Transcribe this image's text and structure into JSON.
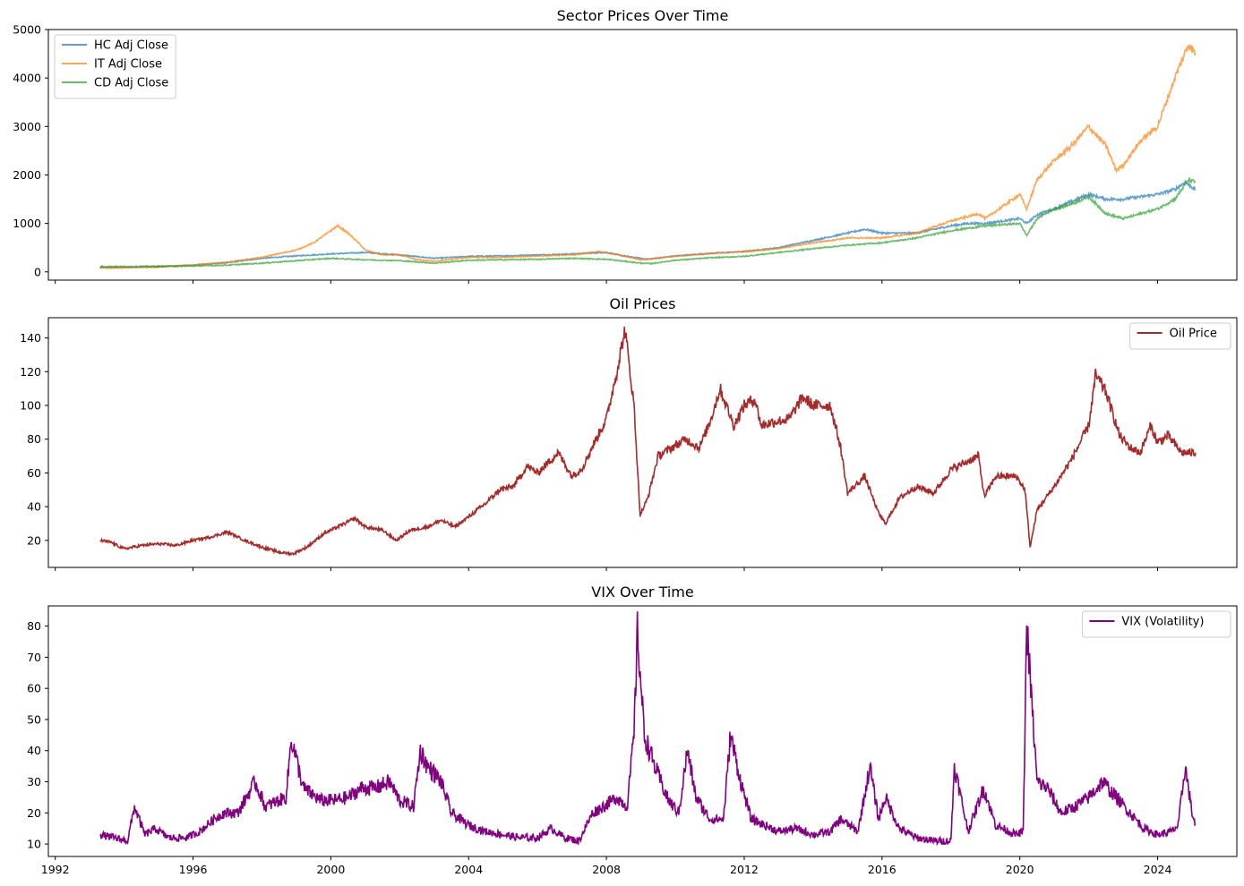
{
  "chart_data": [
    {
      "type": "line",
      "title": "Sector Prices Over Time",
      "xlabel": "",
      "ylabel": "",
      "xlim": [
        1991.8,
        2026.3
      ],
      "ylim": [
        -170,
        5000
      ],
      "xticks": [
        "1992",
        "1996",
        "2000",
        "2004",
        "2008",
        "2012",
        "2016",
        "2020",
        "2024"
      ],
      "yticks": [
        "0",
        "1000",
        "2000",
        "3000",
        "4000",
        "5000"
      ],
      "show_xtick_labels": false,
      "legend": "top-left",
      "grid": false,
      "series": [
        {
          "name": "HC Adj Close",
          "color": "#1f77b4",
          "x": [
            1993.3,
            1994.0,
            1995.0,
            1996.0,
            1997.0,
            1998.0,
            1999.0,
            2000.0,
            2001.0,
            2002.0,
            2003.0,
            2004.0,
            2005.0,
            2006.0,
            2007.0,
            2008.0,
            2008.5,
            2009.2,
            2010.0,
            2011.0,
            2012.0,
            2013.0,
            2014.0,
            2015.0,
            2015.5,
            2016.0,
            2017.0,
            2018.0,
            2018.5,
            2019.0,
            2020.0,
            2020.2,
            2020.5,
            2021.0,
            2022.0,
            2022.5,
            2023.0,
            2024.0,
            2024.5,
            2024.8,
            2025.1
          ],
          "y": [
            95,
            95,
            110,
            140,
            190,
            280,
            330,
            370,
            400,
            350,
            280,
            320,
            330,
            350,
            370,
            400,
            330,
            260,
            330,
            380,
            420,
            500,
            650,
            800,
            880,
            800,
            800,
            950,
            1000,
            1000,
            1100,
            1000,
            1180,
            1300,
            1600,
            1500,
            1500,
            1600,
            1700,
            1850,
            1700
          ]
        },
        {
          "name": "IT Adj Close",
          "color": "#ff7f0e",
          "x": [
            1993.3,
            1994.0,
            1995.0,
            1996.0,
            1997.0,
            1998.0,
            1999.0,
            1999.5,
            2000.0,
            2000.2,
            2000.5,
            2000.8,
            2001.0,
            2001.5,
            2002.0,
            2002.5,
            2003.0,
            2004.0,
            2005.0,
            2006.0,
            2007.0,
            2007.8,
            2008.5,
            2009.0,
            2010.0,
            2011.0,
            2012.0,
            2013.0,
            2014.0,
            2015.0,
            2016.0,
            2017.0,
            2018.0,
            2018.8,
            2019.0,
            2020.0,
            2020.2,
            2020.5,
            2021.0,
            2021.5,
            2022.0,
            2022.5,
            2022.8,
            2023.0,
            2023.5,
            2024.0,
            2024.5,
            2024.9,
            2025.1
          ],
          "y": [
            80,
            85,
            100,
            140,
            200,
            300,
            450,
            600,
            850,
            950,
            800,
            600,
            450,
            350,
            350,
            250,
            220,
            300,
            300,
            330,
            350,
            420,
            330,
            250,
            320,
            380,
            420,
            480,
            600,
            700,
            700,
            800,
            1050,
            1200,
            1100,
            1600,
            1300,
            1900,
            2300,
            2600,
            3000,
            2600,
            2100,
            2200,
            2700,
            3000,
            4000,
            4700,
            4500
          ]
        },
        {
          "name": "CD Adj Close",
          "color": "#2ca02c",
          "x": [
            1993.3,
            1994.0,
            1995.0,
            1996.0,
            1997.0,
            1998.0,
            1999.0,
            2000.0,
            2001.0,
            2002.0,
            2003.0,
            2004.0,
            2005.0,
            2006.0,
            2007.0,
            2008.0,
            2009.0,
            2009.3,
            2010.0,
            2011.0,
            2012.0,
            2013.0,
            2014.0,
            2015.0,
            2016.0,
            2017.0,
            2018.0,
            2019.0,
            2020.0,
            2020.2,
            2020.5,
            2021.0,
            2021.5,
            2022.0,
            2022.5,
            2023.0,
            2024.0,
            2024.5,
            2024.9,
            2025.1
          ],
          "y": [
            110,
            110,
            115,
            120,
            140,
            180,
            230,
            280,
            250,
            230,
            180,
            240,
            250,
            260,
            280,
            260,
            180,
            170,
            240,
            290,
            320,
            400,
            480,
            550,
            600,
            700,
            850,
            950,
            1000,
            750,
            1100,
            1300,
            1400,
            1550,
            1200,
            1100,
            1300,
            1500,
            1900,
            1850
          ]
        }
      ]
    },
    {
      "type": "line",
      "title": "Oil Prices",
      "xlabel": "",
      "ylabel": "",
      "xlim": [
        1991.8,
        2026.3
      ],
      "ylim": [
        4,
        152
      ],
      "xticks": [
        "1992",
        "1996",
        "2000",
        "2004",
        "2008",
        "2012",
        "2016",
        "2020",
        "2024"
      ],
      "yticks": [
        "20",
        "40",
        "60",
        "80",
        "100",
        "120",
        "140"
      ],
      "show_xtick_labels": false,
      "legend": "top-right",
      "grid": false,
      "series": [
        {
          "name": "Oil Price",
          "color": "#a52a2a",
          "x": [
            1993.3,
            1993.6,
            1994.0,
            1994.5,
            1995.0,
            1995.5,
            1996.0,
            1996.5,
            1997.0,
            1997.5,
            1998.0,
            1998.5,
            1998.9,
            1999.3,
            1999.8,
            2000.2,
            2000.7,
            2001.0,
            2001.5,
            2001.9,
            2002.3,
            2002.8,
            2003.2,
            2003.6,
            2004.0,
            2004.5,
            2004.9,
            2005.3,
            2005.7,
            2006.0,
            2006.6,
            2007.0,
            2007.3,
            2007.7,
            2008.0,
            2008.3,
            2008.54,
            2008.8,
            2008.98,
            2009.2,
            2009.5,
            2009.9,
            2010.3,
            2010.7,
            2011.0,
            2011.3,
            2011.7,
            2012.0,
            2012.3,
            2012.5,
            2012.8,
            2013.3,
            2013.7,
            2014.0,
            2014.5,
            2014.8,
            2015.0,
            2015.5,
            2015.9,
            2016.1,
            2016.5,
            2017.0,
            2017.5,
            2018.0,
            2018.8,
            2018.97,
            2019.3,
            2019.9,
            2020.15,
            2020.3,
            2020.5,
            2021.0,
            2021.5,
            2022.0,
            2022.2,
            2022.5,
            2022.9,
            2023.2,
            2023.5,
            2023.8,
            2024.0,
            2024.3,
            2024.7,
            2025.1
          ],
          "y": [
            20,
            19,
            15,
            17,
            18,
            17,
            20,
            22,
            25,
            20,
            16,
            13,
            12,
            16,
            24,
            28,
            33,
            28,
            26,
            20,
            26,
            28,
            32,
            28,
            34,
            42,
            50,
            52,
            64,
            60,
            72,
            58,
            63,
            80,
            92,
            120,
            145,
            100,
            35,
            45,
            70,
            75,
            80,
            75,
            90,
            110,
            88,
            100,
            104,
            88,
            90,
            92,
            105,
            100,
            100,
            75,
            48,
            58,
            36,
            30,
            45,
            52,
            48,
            62,
            70,
            46,
            58,
            58,
            50,
            16,
            38,
            52,
            68,
            88,
            118,
            108,
            82,
            75,
            72,
            88,
            78,
            82,
            72,
            72
          ]
        }
      ]
    },
    {
      "type": "line",
      "title": "VIX Over Time",
      "xlabel": "",
      "ylabel": "",
      "xlim": [
        1991.8,
        2026.3
      ],
      "ylim": [
        6,
        86.5
      ],
      "xticks": [
        "1992",
        "1996",
        "2000",
        "2004",
        "2008",
        "2012",
        "2016",
        "2020",
        "2024"
      ],
      "yticks": [
        "10",
        "20",
        "30",
        "40",
        "50",
        "60",
        "70",
        "80"
      ],
      "show_xtick_labels": true,
      "legend": "top-right",
      "grid": false,
      "series": [
        {
          "name": "VIX (Volatility)",
          "color": "#800080",
          "x": [
            1993.3,
            1993.7,
            1994.1,
            1994.3,
            1994.6,
            1994.9,
            1995.3,
            1995.8,
            1996.2,
            1996.6,
            1996.9,
            1997.3,
            1997.8,
            1998.1,
            1998.7,
            1998.85,
            1999.2,
            1999.7,
            2000.1,
            2000.5,
            2000.9,
            2001.3,
            2001.7,
            2002.0,
            2002.4,
            2002.6,
            2002.8,
            2003.2,
            2003.5,
            2004.0,
            2004.5,
            2005.0,
            2005.5,
            2006.0,
            2006.4,
            2006.8,
            2007.2,
            2007.6,
            2007.9,
            2008.3,
            2008.6,
            2008.8,
            2008.9,
            2009.1,
            2009.4,
            2009.8,
            2010.1,
            2010.35,
            2010.6,
            2011.0,
            2011.4,
            2011.6,
            2011.9,
            2012.2,
            2012.6,
            2013.0,
            2013.5,
            2014.0,
            2014.5,
            2014.8,
            2015.3,
            2015.65,
            2015.9,
            2016.1,
            2016.5,
            2017.0,
            2017.5,
            2018.0,
            2018.1,
            2018.5,
            2018.95,
            2019.3,
            2019.9,
            2020.1,
            2020.2,
            2020.5,
            2020.8,
            2021.2,
            2021.6,
            2022.0,
            2022.4,
            2022.8,
            2023.2,
            2023.6,
            2024.0,
            2024.4,
            2024.6,
            2024.8,
            2025.0,
            2025.1
          ],
          "y": [
            13,
            12,
            11,
            22,
            13,
            15,
            12,
            12,
            14,
            18,
            20,
            20,
            30,
            22,
            25,
            44,
            28,
            24,
            24,
            25,
            28,
            28,
            30,
            24,
            22,
            40,
            35,
            30,
            20,
            16,
            14,
            13,
            12,
            12,
            15,
            12,
            11,
            20,
            22,
            25,
            22,
            45,
            78,
            45,
            35,
            24,
            20,
            40,
            25,
            18,
            18,
            45,
            30,
            18,
            16,
            14,
            15,
            13,
            14,
            18,
            14,
            35,
            18,
            25,
            15,
            12,
            11,
            11,
            35,
            14,
            28,
            16,
            13,
            14,
            80,
            30,
            28,
            20,
            22,
            25,
            30,
            25,
            20,
            15,
            13,
            14,
            16,
            35,
            20,
            16
          ]
        }
      ]
    }
  ]
}
